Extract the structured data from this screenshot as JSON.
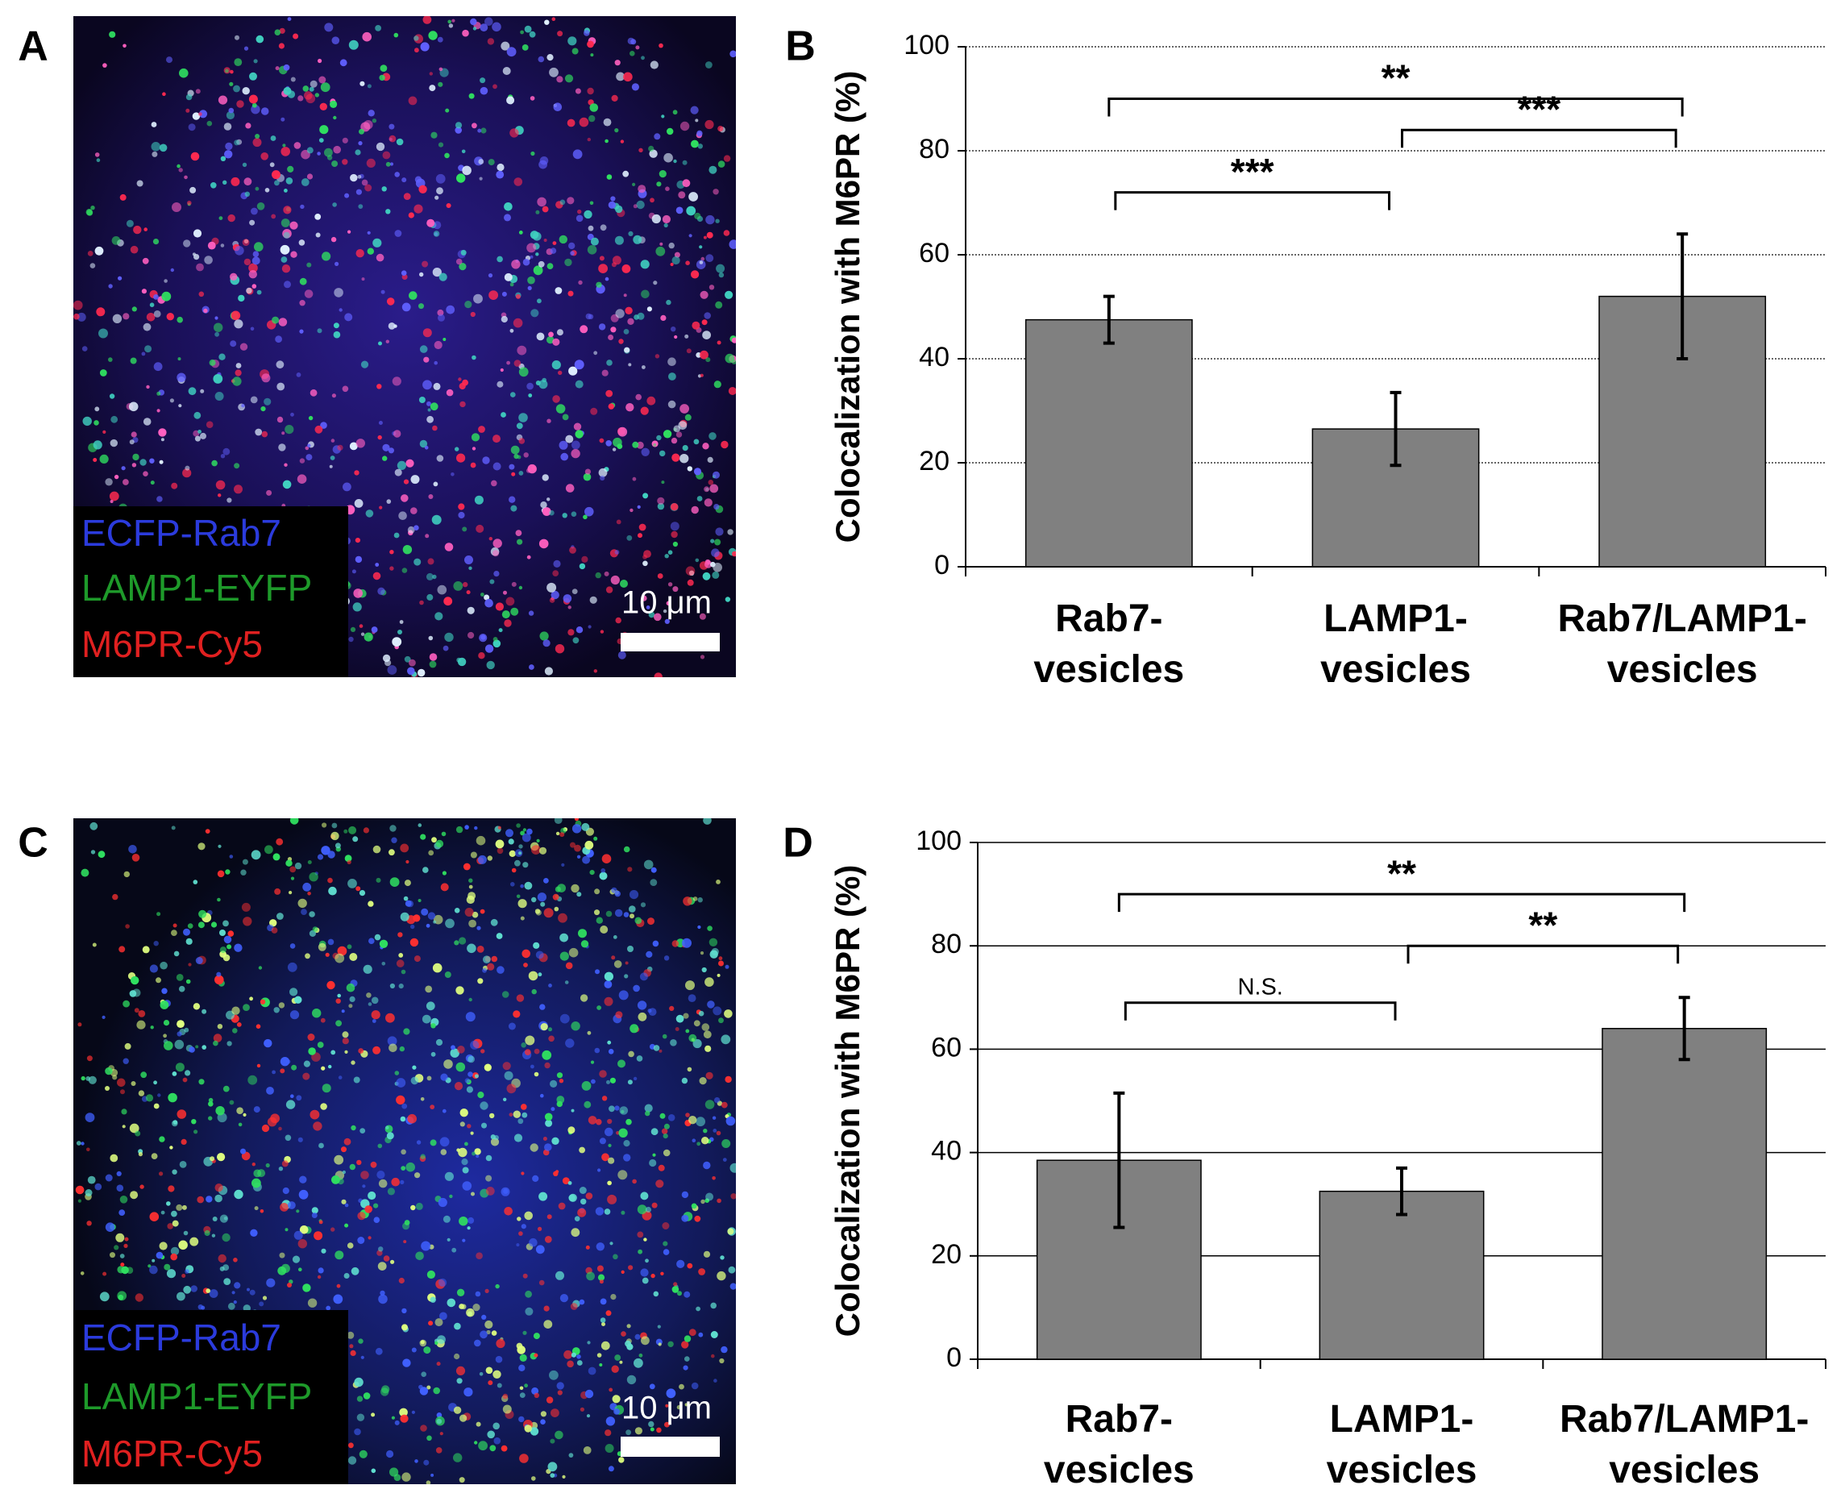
{
  "figure": {
    "images": [
      {
        "panel_label": "A",
        "channels": [
          "ECFP-Rab7",
          "LAMP1-EYFP",
          "M6PR-Cy5"
        ],
        "scale_bar": "10 μm"
      },
      {
        "panel_label": "C",
        "channels": [
          "ECFP-Rab7",
          "LAMP1-EYFP",
          "M6PR-Cy5"
        ],
        "scale_bar": "10 μm"
      }
    ]
  },
  "chart_data": [
    {
      "type": "bar",
      "panel_label": "B",
      "ylabel": "Colocalization with M6PR (%)",
      "categories": [
        "Rab7-\nvesicles",
        "LAMP1-\nvesicles",
        "Rab7/LAMP1-\nvesicles"
      ],
      "values": [
        47.5,
        26.5,
        52
      ],
      "errors": [
        4.5,
        7,
        12
      ],
      "color": "#808080",
      "ylim": [
        0,
        100
      ],
      "yticks": [
        0,
        20,
        40,
        60,
        80,
        100
      ],
      "grid": true,
      "grid_style": "dotted",
      "comparisons": [
        {
          "groups": [
            "Rab7-\nvesicles",
            "LAMP1-\nvesicles"
          ],
          "label": "***"
        },
        {
          "groups": [
            "LAMP1-\nvesicles",
            "Rab7/LAMP1-\nvesicles"
          ],
          "label": "***"
        },
        {
          "groups": [
            "Rab7-\nvesicles",
            "Rab7/LAMP1-\nvesicles"
          ],
          "label": "**"
        }
      ]
    },
    {
      "type": "bar",
      "panel_label": "D",
      "ylabel": "Colocalization with M6PR (%)",
      "categories": [
        "Rab7-\nvesicles",
        "LAMP1-\nvesicles",
        "Rab7/LAMP1-\nvesicles"
      ],
      "values": [
        38.5,
        32.5,
        64
      ],
      "errors": [
        13,
        4.5,
        6
      ],
      "color": "#808080",
      "ylim": [
        0,
        100
      ],
      "yticks": [
        0,
        20,
        40,
        60,
        80,
        100
      ],
      "grid": true,
      "grid_style": "solid",
      "comparisons": [
        {
          "groups": [
            "Rab7-\nvesicles",
            "LAMP1-\nvesicles"
          ],
          "label": "N.S."
        },
        {
          "groups": [
            "LAMP1-\nvesicles",
            "Rab7/LAMP1-\nvesicles"
          ],
          "label": "**"
        },
        {
          "groups": [
            "Rab7-\nvesicles",
            "Rab7/LAMP1-\nvesicles"
          ],
          "label": "**"
        }
      ]
    }
  ]
}
